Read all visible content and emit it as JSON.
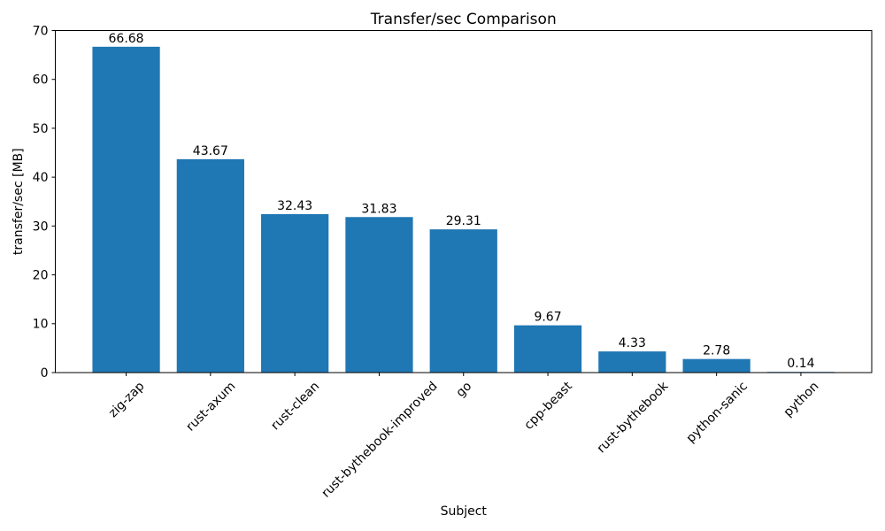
{
  "chart_data": {
    "type": "bar",
    "title": "Transfer/sec Comparison",
    "xlabel": "Subject",
    "ylabel": "transfer/sec [MB]",
    "categories": [
      "zig-zap",
      "rust-axum",
      "rust-clean",
      "rust-bythebook-improved",
      "go",
      "cpp-beast",
      "rust-bythebook",
      "python-sanic",
      "python"
    ],
    "values": [
      66.68,
      43.67,
      32.43,
      31.83,
      29.31,
      9.67,
      4.33,
      2.78,
      0.14
    ],
    "bar_value_labels": [
      "66.68",
      "43.67",
      "32.43",
      "31.83",
      "29.31",
      "9.67",
      "4.33",
      "2.78",
      "0.14"
    ],
    "ylim": [
      0,
      70
    ],
    "yticks": [
      0,
      10,
      20,
      30,
      40,
      50,
      60,
      70
    ],
    "bar_color": "#1f77b4",
    "background_color": "#ffffff",
    "axis_color": "#000000",
    "grid": false,
    "x_tick_rotation_deg": 45,
    "legend": "none"
  }
}
